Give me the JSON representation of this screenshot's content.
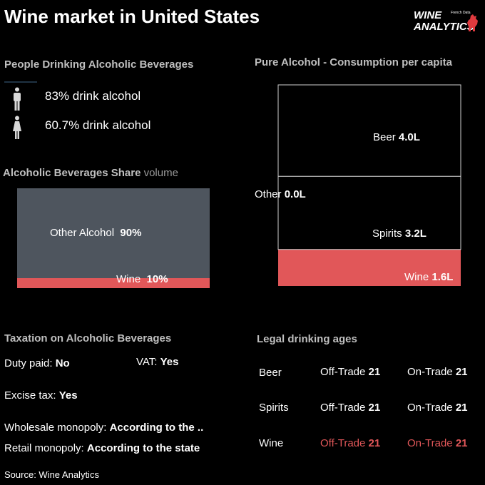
{
  "header": {
    "title": "Wine market in United States",
    "logo_line1": "WINE",
    "logo_line2": "ANALYTICS",
    "logo_small": "French Data"
  },
  "people": {
    "title": "People Drinking Alcoholic Beverages",
    "men": "83% drink alcohol",
    "women": "60.7% drink alcohol",
    "icon_male": "male-person-icon",
    "icon_female": "female-person-icon"
  },
  "chart_data": [
    {
      "type": "bar",
      "title": "Alcoholic Beverages Share",
      "title_suffix": "volume",
      "categories": [
        "Other Alcohol",
        "Wine"
      ],
      "values": [
        90,
        10
      ],
      "value_labels": [
        "90%",
        "10%"
      ],
      "colors": [
        "#4e555e",
        "#e15759"
      ]
    },
    {
      "type": "bar",
      "title": "Pure Alcohol - Consumption per capita",
      "categories": [
        "Beer",
        "Other",
        "Spirits",
        "Wine"
      ],
      "values": [
        4.0,
        0.0,
        3.2,
        1.6
      ],
      "value_labels": [
        "4.0L",
        "0.0L",
        "3.2L",
        "1.6L"
      ],
      "colors": [
        "#000000",
        "#000000",
        "#000000",
        "#e15759"
      ]
    }
  ],
  "taxation": {
    "title": "Taxation on Alcoholic Beverages",
    "duty_label": "Duty paid:",
    "duty_value": "No",
    "vat_label": "VAT:",
    "vat_value": "Yes",
    "excise_label": "Excise tax:",
    "excise_value": "Yes",
    "wholesale_label": "Wholesale monopoly:",
    "wholesale_value": "According to the ..",
    "retail_label": "Retail monopoly:",
    "retail_value": "According to the state"
  },
  "legal": {
    "title": "Legal drinking ages",
    "rows": [
      {
        "name": "Beer",
        "off_label": "Off-Trade",
        "off_value": "21",
        "on_label": "On-Trade",
        "on_value": "21"
      },
      {
        "name": "Spirits",
        "off_label": "Off-Trade",
        "off_value": "21",
        "on_label": "On-Trade",
        "on_value": "21"
      },
      {
        "name": "Wine",
        "off_label": "Off-Trade",
        "off_value": "21",
        "on_label": "On-Trade",
        "on_value": "21"
      }
    ]
  },
  "source": "Source: Wine Analytics",
  "colors": {
    "accent_red": "#e15759",
    "bar_gray": "#4e555e",
    "title_gray": "#bfbfbf"
  }
}
